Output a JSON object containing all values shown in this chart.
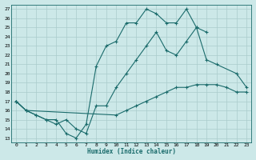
{
  "xlabel": "Humidex (Indice chaleur)",
  "bg_color": "#cce8e8",
  "line_color": "#1a6b6b",
  "grid_color": "#b0d8d8",
  "xlim": [
    -0.5,
    23.5
  ],
  "ylim": [
    12.5,
    27.5
  ],
  "xticks": [
    0,
    1,
    2,
    3,
    4,
    5,
    6,
    7,
    8,
    9,
    10,
    11,
    12,
    13,
    14,
    15,
    16,
    17,
    18,
    19,
    20,
    21,
    22,
    23
  ],
  "yticks": [
    13,
    14,
    15,
    16,
    17,
    18,
    19,
    20,
    21,
    22,
    23,
    24,
    25,
    26,
    27
  ],
  "line1_x": [
    0,
    1,
    2,
    3,
    4,
    5,
    6,
    7,
    8,
    9,
    10,
    11,
    12,
    13,
    14,
    15,
    16,
    17,
    18,
    19
  ],
  "line1_y": [
    17.0,
    16.0,
    15.5,
    15.0,
    15.0,
    13.5,
    13.0,
    14.5,
    20.8,
    23.0,
    23.5,
    25.5,
    25.5,
    27.0,
    26.5,
    25.5,
    25.5,
    27.0,
    25.0,
    24.5
  ],
  "line2_x": [
    0,
    1,
    2,
    3,
    4,
    5,
    6,
    7,
    8,
    9,
    10,
    11,
    12,
    13,
    14,
    15,
    16,
    17,
    18,
    19,
    20,
    22,
    23
  ],
  "line2_y": [
    17.0,
    16.0,
    15.5,
    15.0,
    14.5,
    15.0,
    14.0,
    13.5,
    16.5,
    16.5,
    18.5,
    20.0,
    21.5,
    23.0,
    24.5,
    22.5,
    22.0,
    23.5,
    25.0,
    21.5,
    21.0,
    20.0,
    18.5
  ],
  "line3_x": [
    0,
    1,
    10,
    11,
    12,
    13,
    14,
    15,
    16,
    17,
    18,
    19,
    20,
    21,
    22,
    23
  ],
  "line3_y": [
    17.0,
    16.0,
    15.5,
    16.0,
    16.5,
    17.0,
    17.5,
    18.0,
    18.5,
    18.5,
    18.8,
    18.8,
    18.8,
    18.5,
    18.0,
    18.0
  ]
}
